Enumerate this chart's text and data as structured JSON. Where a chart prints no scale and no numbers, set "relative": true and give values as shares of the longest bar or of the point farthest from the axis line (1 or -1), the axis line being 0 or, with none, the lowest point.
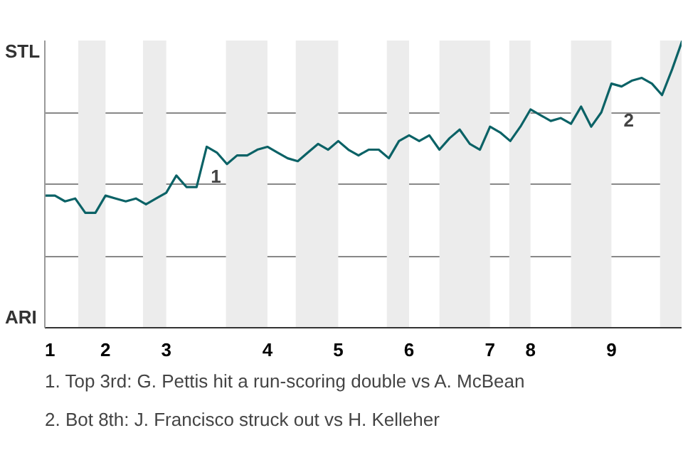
{
  "chart_data": {
    "type": "line",
    "relative": true,
    "categories": [
      "1",
      null,
      null,
      null,
      null,
      null,
      "2",
      null,
      null,
      null,
      null,
      null,
      "3",
      null,
      null,
      null,
      null,
      null,
      null,
      null,
      null,
      null,
      "4",
      null,
      null,
      null,
      null,
      null,
      null,
      "5",
      null,
      null,
      null,
      null,
      null,
      null,
      "6",
      null,
      null,
      null,
      null,
      null,
      null,
      null,
      "7",
      null,
      null,
      null,
      "8",
      null,
      null,
      null,
      null,
      null,
      null,
      null,
      "9",
      null,
      null,
      null,
      null,
      null,
      null,
      null
    ],
    "series": [
      {
        "color": "#0b6266",
        "values": [
          0.46,
          0.46,
          0.44,
          0.45,
          0.4,
          0.4,
          0.46,
          0.45,
          0.44,
          0.45,
          0.43,
          0.45,
          0.47,
          0.53,
          0.49,
          0.49,
          0.63,
          0.61,
          0.57,
          0.6,
          0.6,
          0.62,
          0.63,
          0.61,
          0.59,
          0.58,
          0.61,
          0.64,
          0.62,
          0.65,
          0.62,
          0.6,
          0.62,
          0.62,
          0.59,
          0.65,
          0.67,
          0.65,
          0.67,
          0.62,
          0.66,
          0.69,
          0.64,
          0.62,
          0.7,
          0.68,
          0.65,
          0.7,
          0.76,
          0.74,
          0.72,
          0.73,
          0.71,
          0.77,
          0.7,
          0.75,
          0.85,
          0.84,
          0.86,
          0.87,
          0.85,
          0.81,
          0.9,
          1
        ]
      }
    ],
    "grid": "y",
    "annotations": [
      "STL",
      "ARI",
      "1",
      "2",
      "1. Top 3rd: G. Pettis hit a run-scoring double vs A. McBean",
      "2. Bot 8th: J. Francisco struck out vs H. Kelleher"
    ]
  }
}
